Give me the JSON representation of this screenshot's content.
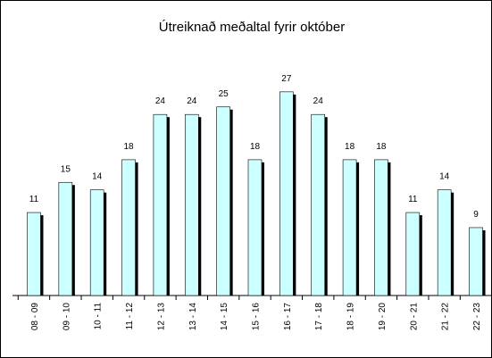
{
  "chart_data": {
    "type": "bar",
    "title": "Útreiknað meðaltal fyrir október",
    "categories": [
      "08 - 09",
      "09 - 10",
      "10 - 11",
      "11 - 12",
      "12 - 13",
      "13 - 14",
      "14 - 15",
      "15 - 16",
      "16 - 17",
      "17 - 18",
      "18 - 19",
      "19 - 20",
      "20 - 21",
      "21 - 22",
      "22 - 23"
    ],
    "values": [
      11,
      15,
      14,
      18,
      24,
      24,
      25,
      18,
      27,
      24,
      18,
      18,
      11,
      14,
      9
    ],
    "color": "#ccffff"
  }
}
